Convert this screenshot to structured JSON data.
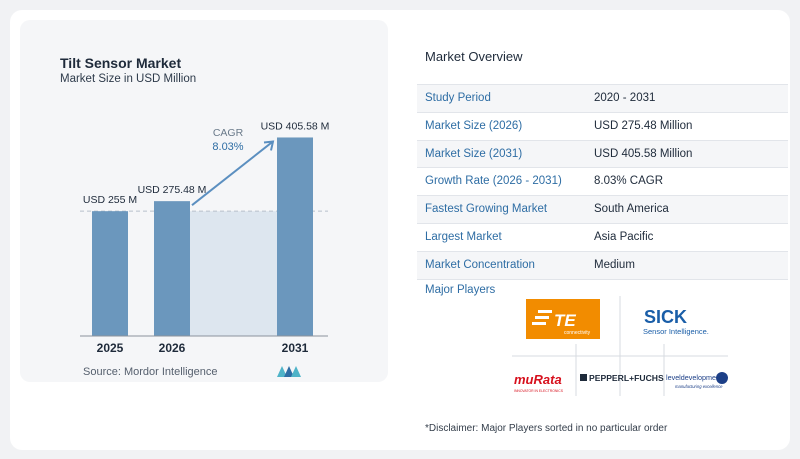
{
  "chart": {
    "title": "Tilt Sensor Market",
    "subtitle": "Market Size in USD Million",
    "cagr_label": "CAGR",
    "cagr_value": "8.03%",
    "source": "Source:  Mordor Intelligence"
  },
  "chart_data": {
    "type": "bar",
    "title": "Tilt Sensor Market",
    "subtitle": "Market Size in USD Million",
    "categories": [
      "2025",
      "2026",
      "2031"
    ],
    "values": [
      255,
      275.48,
      405.58
    ],
    "data_labels": [
      "USD 255 M",
      "USD 275.48 M",
      "USD 405.58 M"
    ],
    "annotation": "CAGR 8.03%",
    "ylim": [
      0,
      420
    ],
    "grid": false,
    "colors": {
      "bar": "#6b97bd",
      "bar_dark": "#4c7aa3",
      "shade": "#dde6ef",
      "axis": "#8c939c",
      "arrow": "#5b8fc0"
    }
  },
  "overview": {
    "title": "Market Overview",
    "rows": [
      {
        "label": "Study Period",
        "value": "2020 - 2031"
      },
      {
        "label": "Market Size (2026)",
        "value": "USD 275.48 Million"
      },
      {
        "label": "Market Size (2031)",
        "value": "USD 405.58 Million"
      },
      {
        "label": "Growth Rate (2026 - 2031)",
        "value": "8.03% CAGR"
      },
      {
        "label": "Fastest Growing Market",
        "value": "South America"
      },
      {
        "label": "Largest Market",
        "value": "Asia Pacific"
      },
      {
        "label": "Market Concentration",
        "value": "Medium"
      }
    ]
  },
  "players": {
    "title": "Major Players",
    "logos": [
      {
        "name": "TE connectivity",
        "text": "TE",
        "subtext": "connectivity",
        "color": "#f28c00"
      },
      {
        "name": "SICK",
        "text": "SICK",
        "subtext": "Sensor Intelligence.",
        "color": "#1a5ea8"
      },
      {
        "name": "muRata",
        "text": "muRata",
        "subtext": "INNOVATOR IN ELECTRONICS",
        "color": "#d7101d"
      },
      {
        "name": "Pepperl+Fuchs",
        "text": "PEPPERL+FUCHS",
        "color": "#1e2a3a"
      },
      {
        "name": "level developments",
        "text": "leveldevelopments",
        "subtext": "manufacturing excellence",
        "color": "#1c3f87"
      }
    ]
  },
  "disclaimer": "*Disclaimer: Major Players sorted in no particular order"
}
